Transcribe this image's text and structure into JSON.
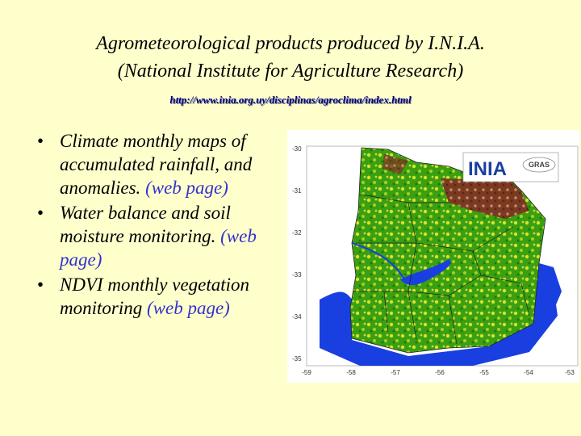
{
  "title_line1": "Agrometeorological products produced by I.N.I.A.",
  "title_line2": "(National Institute for Agriculture Research)",
  "url": "http://www.inia.org.uy/disciplinas/agroclima/index.html",
  "bullets": [
    {
      "text": "Climate monthly maps of accumulated rainfall, and anomalies.",
      "link": "(web page)"
    },
    {
      "text": "Water balance and soil moisture monitoring.",
      "link": "(web page)"
    },
    {
      "text": "NDVI monthly vegetation monitoring",
      "link": "(web page)"
    }
  ],
  "map": {
    "lat_labels": [
      "-30",
      "-31",
      "-32",
      "-33",
      "-34",
      "-35"
    ],
    "lon_labels": [
      "-59",
      "-58",
      "-57",
      "-56",
      "-55",
      "-54",
      "-53"
    ],
    "logo_text": "INIA",
    "logo_sub": "GRAS",
    "colors": {
      "water": "#1a3fe0",
      "green": "#3aa012",
      "yellow": "#d8e22a",
      "brown": "#7a3a22"
    }
  }
}
